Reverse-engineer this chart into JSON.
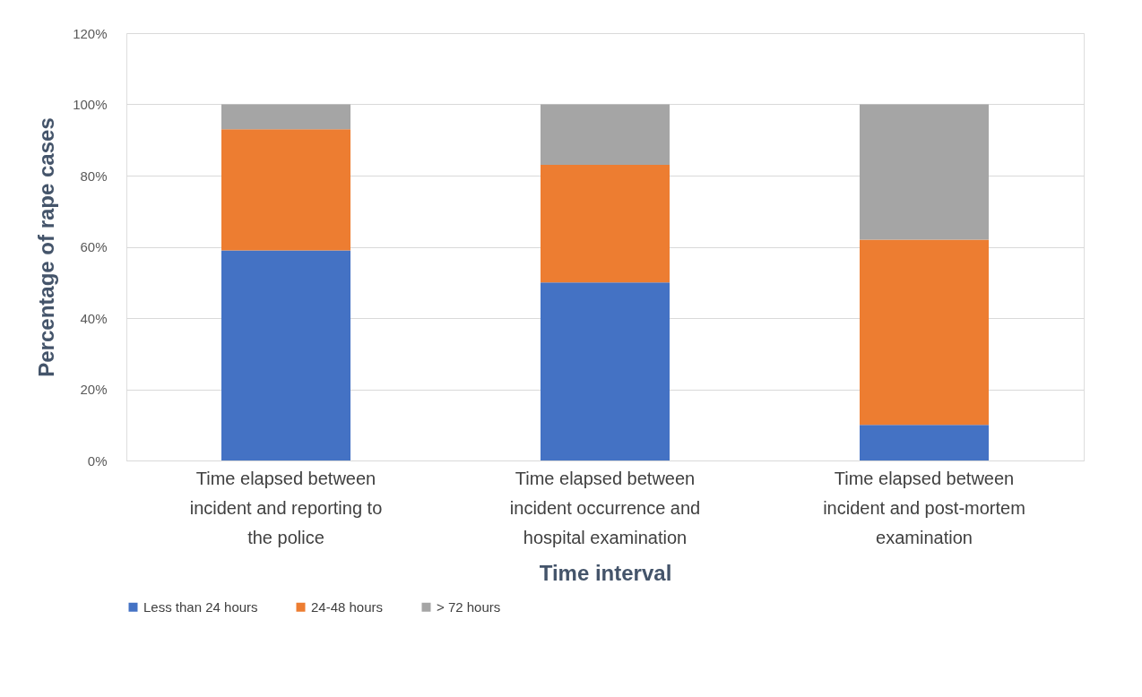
{
  "chart_data": {
    "type": "bar",
    "stacked": true,
    "xlabel": "Time interval",
    "ylabel": "Percentage of rape cases",
    "categories": [
      "Time elapsed between incident  and  reporting to the police",
      "Time elapsed between incident occurrence and hospital examination",
      "Time elapsed between incident and post-mortem examination"
    ],
    "series": [
      {
        "name": "Less than 24 hours",
        "color": "#4472c4",
        "values": [
          59,
          50,
          10
        ]
      },
      {
        "name": "24-48 hours",
        "color": "#ed7d31",
        "values": [
          34,
          33,
          52
        ]
      },
      {
        "name": "> 72 hours",
        "color": "#a5a5a5",
        "values": [
          7,
          17,
          38
        ]
      }
    ],
    "ylim": [
      0,
      120
    ],
    "yticks": [
      {
        "value": 0,
        "label": "0%"
      },
      {
        "value": 20,
        "label": "20%"
      },
      {
        "value": 40,
        "label": "40%"
      },
      {
        "value": 60,
        "label": "60%"
      },
      {
        "value": 80,
        "label": "80%"
      },
      {
        "value": 100,
        "label": "100%"
      },
      {
        "value": 120,
        "label": "120%"
      }
    ],
    "grid": "y",
    "legend": "bottom"
  }
}
